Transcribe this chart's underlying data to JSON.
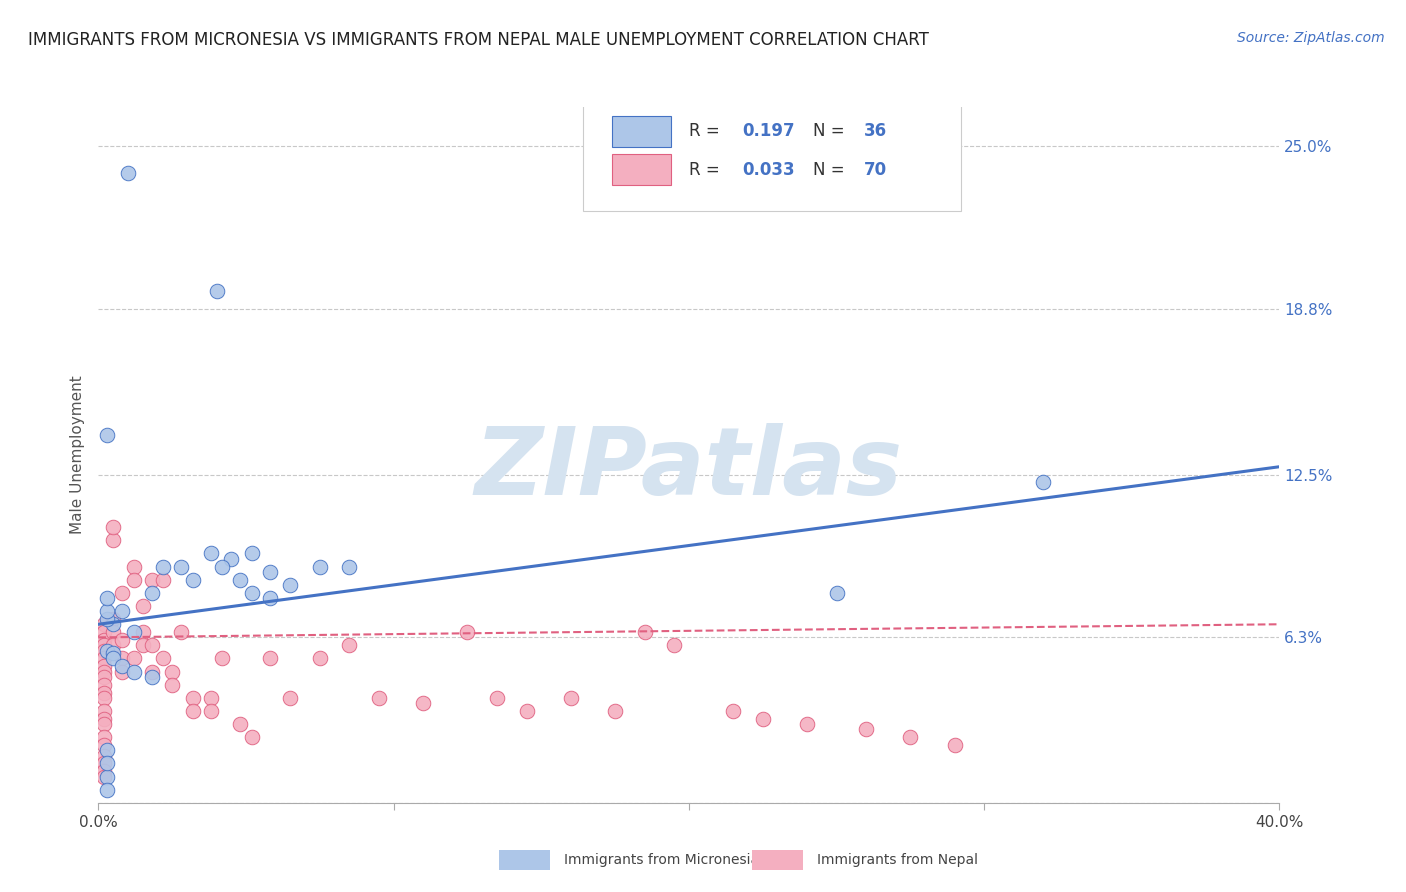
{
  "title": "IMMIGRANTS FROM MICRONESIA VS IMMIGRANTS FROM NEPAL MALE UNEMPLOYMENT CORRELATION CHART",
  "source": "Source: ZipAtlas.com",
  "ylabel": "Male Unemployment",
  "xlim": [
    0,
    0.4
  ],
  "ylim": [
    0.0,
    0.265
  ],
  "yticks": [
    0.0,
    0.063,
    0.125,
    0.188,
    0.25
  ],
  "ytick_labels": [
    "",
    "6.3%",
    "12.5%",
    "18.8%",
    "25.0%"
  ],
  "xticks": [
    0.0,
    0.1,
    0.2,
    0.3,
    0.4
  ],
  "xtick_labels": [
    "0.0%",
    "",
    "",
    "",
    "40.0%"
  ],
  "watermark_text": "ZIPatlas",
  "legend_r1": "R = ",
  "legend_v1": " 0.197",
  "legend_n1": "  N = ",
  "legend_nv1": "36",
  "legend_r2": "R = ",
  "legend_v2": " 0.033",
  "legend_n2": "  N = ",
  "legend_nv2": "70",
  "micronesia_x": [
    0.01,
    0.04,
    0.005,
    0.003,
    0.003,
    0.003,
    0.003,
    0.008,
    0.012,
    0.018,
    0.022,
    0.028,
    0.032,
    0.038,
    0.045,
    0.052,
    0.058,
    0.065,
    0.075,
    0.085,
    0.005,
    0.005,
    0.008,
    0.012,
    0.018,
    0.042,
    0.048,
    0.052,
    0.058,
    0.32,
    0.003,
    0.003,
    0.003,
    0.003,
    0.003,
    0.25
  ],
  "micronesia_y": [
    0.24,
    0.195,
    0.068,
    0.07,
    0.073,
    0.078,
    0.058,
    0.073,
    0.065,
    0.08,
    0.09,
    0.09,
    0.085,
    0.095,
    0.093,
    0.095,
    0.088,
    0.083,
    0.09,
    0.09,
    0.057,
    0.055,
    0.052,
    0.05,
    0.048,
    0.09,
    0.085,
    0.08,
    0.078,
    0.122,
    0.14,
    0.02,
    0.01,
    0.005,
    0.015,
    0.08
  ],
  "nepal_x": [
    0.002,
    0.002,
    0.002,
    0.002,
    0.002,
    0.002,
    0.002,
    0.002,
    0.002,
    0.002,
    0.002,
    0.002,
    0.002,
    0.002,
    0.002,
    0.002,
    0.002,
    0.002,
    0.002,
    0.002,
    0.002,
    0.005,
    0.005,
    0.005,
    0.005,
    0.005,
    0.008,
    0.008,
    0.008,
    0.008,
    0.012,
    0.012,
    0.012,
    0.015,
    0.015,
    0.015,
    0.018,
    0.018,
    0.018,
    0.022,
    0.022,
    0.025,
    0.025,
    0.028,
    0.032,
    0.032,
    0.038,
    0.038,
    0.042,
    0.048,
    0.052,
    0.058,
    0.065,
    0.075,
    0.085,
    0.095,
    0.11,
    0.125,
    0.135,
    0.145,
    0.16,
    0.175,
    0.185,
    0.195,
    0.215,
    0.225,
    0.24,
    0.26,
    0.275,
    0.29
  ],
  "nepal_y": [
    0.068,
    0.065,
    0.062,
    0.06,
    0.058,
    0.055,
    0.052,
    0.05,
    0.048,
    0.045,
    0.042,
    0.04,
    0.035,
    0.032,
    0.03,
    0.025,
    0.022,
    0.018,
    0.015,
    0.012,
    0.01,
    0.1,
    0.105,
    0.07,
    0.065,
    0.06,
    0.08,
    0.062,
    0.055,
    0.05,
    0.09,
    0.085,
    0.055,
    0.075,
    0.065,
    0.06,
    0.085,
    0.06,
    0.05,
    0.085,
    0.055,
    0.05,
    0.045,
    0.065,
    0.04,
    0.035,
    0.04,
    0.035,
    0.055,
    0.03,
    0.025,
    0.055,
    0.04,
    0.055,
    0.06,
    0.04,
    0.038,
    0.065,
    0.04,
    0.035,
    0.04,
    0.035,
    0.065,
    0.06,
    0.035,
    0.032,
    0.03,
    0.028,
    0.025,
    0.022
  ],
  "blue_line_x": [
    0.0,
    0.4
  ],
  "blue_line_y": [
    0.068,
    0.128
  ],
  "pink_line_x": [
    0.0,
    0.4
  ],
  "pink_line_y": [
    0.063,
    0.068
  ],
  "blue_color": "#4472c4",
  "blue_fill": "#adc6e8",
  "pink_color": "#e06080",
  "pink_fill": "#f4afc0",
  "grid_color": "#c8c8c8",
  "background_color": "#ffffff",
  "title_fontsize": 12,
  "source_fontsize": 10,
  "axis_label_fontsize": 11,
  "tick_fontsize": 11,
  "legend_fontsize": 12,
  "watermark_color": "#d5e3f0",
  "watermark_fontsize": 68
}
